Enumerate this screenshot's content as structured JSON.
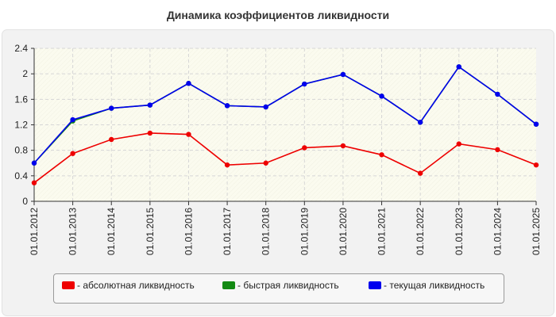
{
  "title": "Динамика коэффициентов ликвидности",
  "chart_data": {
    "type": "line",
    "x": [
      "01.01.2012",
      "01.01.2013",
      "01.01.2014",
      "01.01.2015",
      "01.01.2016",
      "01.01.2017",
      "01.01.2018",
      "01.01.2019",
      "01.01.2020",
      "01.01.2021",
      "01.01.2022",
      "01.01.2023",
      "01.01.2024",
      "01.01.2025"
    ],
    "ylim": [
      0,
      2.4
    ],
    "yticks": [
      "0",
      "0.4",
      "0.8",
      "1.2",
      "1.6",
      "2",
      "2.4"
    ],
    "grid": true,
    "legend_position": "bottom",
    "series": [
      {
        "name": "- абсолютная ликвидность",
        "color": "#ee0000",
        "values": [
          0.29,
          0.75,
          0.97,
          1.07,
          1.05,
          0.57,
          0.6,
          0.84,
          0.87,
          0.73,
          0.44,
          0.9,
          0.81,
          0.57
        ]
      },
      {
        "name": "- быстрая ликвидность",
        "color": "#138a13",
        "values": [
          0.6,
          1.26,
          1.46,
          1.51,
          1.85,
          1.5,
          1.48,
          1.84,
          1.99,
          1.65,
          1.24,
          2.11,
          1.68,
          1.21
        ]
      },
      {
        "name": "- текущая ликвидность",
        "color": "#0000ee",
        "values": [
          0.6,
          1.28,
          1.46,
          1.51,
          1.85,
          1.5,
          1.48,
          1.84,
          1.99,
          1.65,
          1.24,
          2.11,
          1.68,
          1.21
        ]
      }
    ]
  }
}
